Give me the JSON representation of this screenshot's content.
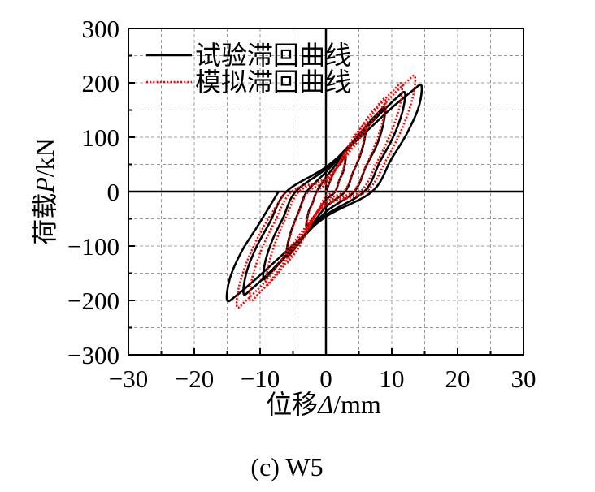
{
  "chart_data": {
    "type": "line",
    "xlabel": {
      "name": "位移",
      "symbol": "Δ",
      "unit": "/mm"
    },
    "ylabel": {
      "name": "荷载",
      "symbol": "P",
      "unit": "/kN"
    },
    "xlim": [
      -30,
      30
    ],
    "ylim": [
      -300,
      300
    ],
    "x_ticks": [
      -30,
      -20,
      -10,
      0,
      10,
      20,
      30
    ],
    "x_tick_labels": [
      "−30",
      "−20",
      "−10",
      "0",
      "10",
      "20",
      "30"
    ],
    "y_ticks": [
      -300,
      -200,
      -100,
      0,
      100,
      200,
      300
    ],
    "y_tick_labels": [
      "−300",
      "−200",
      "−100",
      "0",
      "100",
      "200",
      "300"
    ],
    "x_minor_step": 5,
    "y_minor_step": 50,
    "grid": true,
    "zero_lines": true,
    "legend": {
      "placement": "top-left"
    },
    "series": [
      {
        "name": "试验滞回曲线",
        "color": "#000000",
        "style": "solid",
        "points": [
          [
            0,
            0
          ],
          [
            1.1,
            33
          ],
          [
            2.1,
            51
          ],
          [
            2.7,
            62
          ],
          [
            3,
            65
          ],
          [
            2.9,
            52
          ],
          [
            2.6,
            36
          ],
          [
            2,
            20
          ],
          [
            1.4,
            0
          ],
          [
            0,
            -15
          ],
          [
            -1.1,
            -33
          ],
          [
            -2.1,
            -51
          ],
          [
            -2.7,
            -62
          ],
          [
            -3,
            -65
          ],
          [
            -2.9,
            -52
          ],
          [
            -2.6,
            -36
          ],
          [
            -2,
            -20
          ],
          [
            -1.4,
            0
          ],
          [
            0,
            26
          ],
          [
            2.1,
            59
          ],
          [
            4.1,
            91
          ],
          [
            5.4,
            109
          ],
          [
            6,
            115
          ],
          [
            5.8,
            92
          ],
          [
            5.1,
            63
          ],
          [
            4.1,
            35
          ],
          [
            2.9,
            0
          ],
          [
            0,
            -28
          ],
          [
            -2.1,
            -61
          ],
          [
            -4.1,
            -95
          ],
          [
            -5.4,
            -114
          ],
          [
            -6,
            -120
          ],
          [
            -5.8,
            -96
          ],
          [
            -5.1,
            -66
          ],
          [
            -4.1,
            -36
          ],
          [
            -2.9,
            0
          ],
          [
            0,
            36
          ],
          [
            3.2,
            79
          ],
          [
            6.2,
            122
          ],
          [
            8.1,
            147
          ],
          [
            9,
            155
          ],
          [
            8.7,
            124
          ],
          [
            7.7,
            85
          ],
          [
            6.1,
            47
          ],
          [
            4.3,
            0
          ],
          [
            0,
            -37
          ],
          [
            -3.3,
            -82
          ],
          [
            -6.6,
            -126
          ],
          [
            -8.6,
            -152
          ],
          [
            -9.5,
            -160
          ],
          [
            -9.2,
            -128
          ],
          [
            -8.1,
            -88
          ],
          [
            -6.5,
            -48
          ],
          [
            -4.6,
            0
          ],
          [
            0,
            42
          ],
          [
            4.2,
            93
          ],
          [
            8.3,
            144
          ],
          [
            10.8,
            173
          ],
          [
            12,
            182
          ],
          [
            11.6,
            146
          ],
          [
            10.2,
            100
          ],
          [
            8.2,
            55
          ],
          [
            5.8,
            0
          ],
          [
            0,
            -43
          ],
          [
            -4.4,
            -96
          ],
          [
            -8.6,
            -149
          ],
          [
            -11.3,
            -179
          ],
          [
            -12.5,
            -188
          ],
          [
            -12.1,
            -150
          ],
          [
            -10.6,
            -103
          ],
          [
            -8.5,
            -56
          ],
          [
            -6,
            0
          ],
          [
            0,
            45
          ],
          [
            5.1,
            99
          ],
          [
            10,
            154
          ],
          [
            13.1,
            185
          ],
          [
            14.5,
            195
          ],
          [
            14.1,
            156
          ],
          [
            12.3,
            107
          ],
          [
            9.9,
            59
          ],
          [
            7,
            0
          ],
          [
            0,
            -46
          ],
          [
            -5.3,
            -102
          ],
          [
            -10.4,
            -158
          ],
          [
            -13.5,
            -190
          ],
          [
            -15,
            -200
          ],
          [
            -14.6,
            -160
          ],
          [
            -12.8,
            -110
          ],
          [
            -10.2,
            -60
          ],
          [
            -7.2,
            0
          ]
        ]
      },
      {
        "name": "模拟滞回曲线",
        "color": "#ff0000",
        "style": "dotted",
        "points": [
          [
            0,
            0
          ],
          [
            0.9,
            27
          ],
          [
            2,
            53
          ],
          [
            2.7,
            67
          ],
          [
            3,
            70
          ],
          [
            2.9,
            57
          ],
          [
            2.6,
            39
          ],
          [
            2,
            20
          ],
          [
            1.4,
            0
          ],
          [
            0,
            -8
          ],
          [
            -0.9,
            -27
          ],
          [
            -2,
            -53
          ],
          [
            -2.7,
            -67
          ],
          [
            -3,
            -70
          ],
          [
            -2.9,
            -57
          ],
          [
            -2.6,
            -39
          ],
          [
            -2,
            -20
          ],
          [
            -1.4,
            0
          ],
          [
            0,
            15
          ],
          [
            1.8,
            48
          ],
          [
            3.9,
            94
          ],
          [
            5.4,
            119
          ],
          [
            6,
            125
          ],
          [
            5.9,
            103
          ],
          [
            5.2,
            69
          ],
          [
            4.1,
            35
          ],
          [
            2.7,
            0
          ],
          [
            0,
            -16
          ],
          [
            -1.8,
            -49
          ],
          [
            -3.9,
            -98
          ],
          [
            -5.4,
            -124
          ],
          [
            -6,
            -130
          ],
          [
            -5.9,
            -107
          ],
          [
            -5.2,
            -72
          ],
          [
            -4.1,
            -36
          ],
          [
            -2.7,
            0
          ],
          [
            0,
            20
          ],
          [
            2.7,
            65
          ],
          [
            5.9,
            128
          ],
          [
            8.1,
            162
          ],
          [
            9,
            170
          ],
          [
            8.8,
            139
          ],
          [
            7.7,
            94
          ],
          [
            6.1,
            48
          ],
          [
            4.1,
            0
          ],
          [
            0,
            -20
          ],
          [
            -2.7,
            -65
          ],
          [
            -5.9,
            -128
          ],
          [
            -8.1,
            -162
          ],
          [
            -9,
            -170
          ],
          [
            -8.8,
            -139
          ],
          [
            -7.7,
            -94
          ],
          [
            -6.1,
            -48
          ],
          [
            -4.1,
            0
          ],
          [
            0,
            24
          ],
          [
            3.5,
            75
          ],
          [
            7.5,
            149
          ],
          [
            10.4,
            188
          ],
          [
            11.5,
            198
          ],
          [
            11.3,
            162
          ],
          [
            9.9,
            109
          ],
          [
            7.8,
            55
          ],
          [
            5.2,
            0
          ],
          [
            0,
            -24
          ],
          [
            -3.5,
            -76
          ],
          [
            -7.5,
            -150
          ],
          [
            -10.4,
            -190
          ],
          [
            -11.5,
            -200
          ],
          [
            -11.3,
            -164
          ],
          [
            -9.9,
            -110
          ],
          [
            -7.8,
            -56
          ],
          [
            -5.2,
            0
          ],
          [
            0,
            25
          ],
          [
            4.1,
            81
          ],
          [
            8.8,
            159
          ],
          [
            12.2,
            201
          ],
          [
            13.5,
            212
          ],
          [
            13.2,
            174
          ],
          [
            11.6,
            117
          ],
          [
            9.2,
            59
          ],
          [
            6.1,
            0
          ],
          [
            0,
            -25
          ],
          [
            -4.1,
            -81
          ],
          [
            -8.8,
            -159
          ],
          [
            -12.2,
            -201
          ],
          [
            -13.5,
            -212
          ],
          [
            -13.2,
            -174
          ],
          [
            -11.6,
            -117
          ],
          [
            -9.2,
            -59
          ],
          [
            -6.1,
            0
          ]
        ]
      }
    ]
  },
  "caption": "(c) W5"
}
